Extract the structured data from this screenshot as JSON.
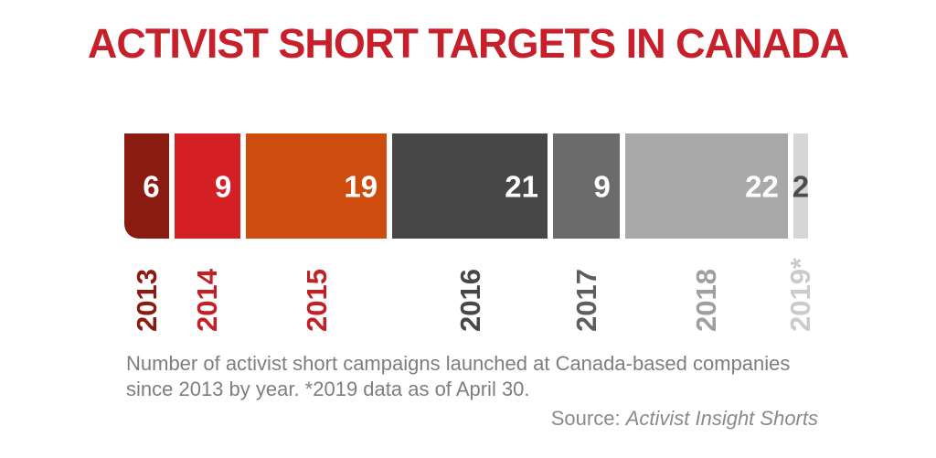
{
  "title": "ACTIVIST SHORT TARGETS IN CANADA",
  "accent_color": "#c8202a",
  "chart_data": {
    "type": "bar",
    "subtype": "proportional-horizontal-segments",
    "title": "ACTIVIST SHORT TARGETS IN CANADA",
    "categories": [
      "2013",
      "2014",
      "2015",
      "2016",
      "2017",
      "2018",
      "2019*"
    ],
    "values": [
      6,
      9,
      19,
      21,
      9,
      22,
      2
    ],
    "bar_colors": [
      "#8a1b10",
      "#d42025",
      "#ce4c0d",
      "#474747",
      "#6b6b6b",
      "#a9a9a9",
      "#d6d6d6"
    ],
    "category_label_colors": [
      "#8a1b10",
      "#c32026",
      "#c32026",
      "#47474a",
      "#5e5e60",
      "#9f9f9f",
      "#cbcbcb"
    ],
    "value_label_colors": [
      "#ffffff",
      "#ffffff",
      "#ffffff",
      "#ffffff",
      "#ffffff",
      "#ffffff",
      "#4d4d4d"
    ],
    "value_label_placement": [
      "inside-right",
      "inside-right",
      "inside-right",
      "inside-right",
      "inside-right",
      "inside-right",
      "outside-center"
    ],
    "legend": "none",
    "axes": "none",
    "grid": false
  },
  "caption": {
    "line1": "Number of activist short campaigns launched at Canada-based companies",
    "line2": "since 2013 by year. *2019 data as of April 30."
  },
  "source": {
    "prefix": "Source: ",
    "name": "Activist Insight Shorts"
  }
}
